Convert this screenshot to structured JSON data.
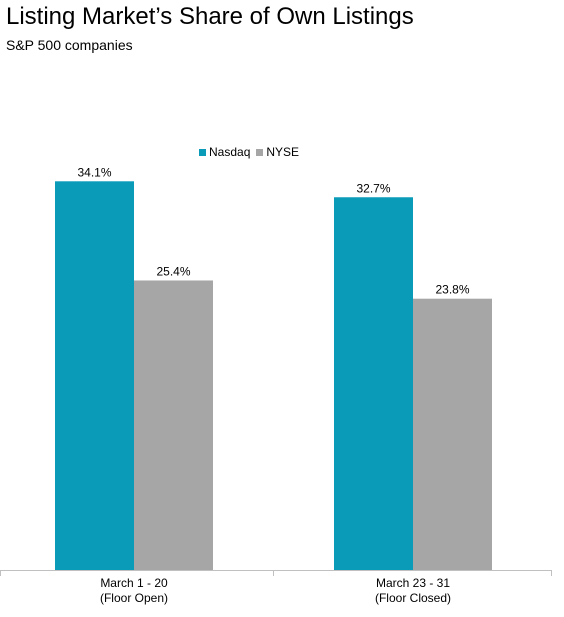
{
  "title": "Listing Market’s Share of Own Listings",
  "subtitle": "S&P 500 companies",
  "chart_data": {
    "type": "bar",
    "categories": [
      [
        "March 1 - 20",
        "(Floor Open)"
      ],
      [
        "March 23 - 31",
        "(Floor Closed)"
      ]
    ],
    "series": [
      {
        "name": "Nasdaq",
        "color": "#0a9bb8",
        "values": [
          34.1,
          32.7
        ],
        "labels": [
          "34.1%",
          "32.7%"
        ]
      },
      {
        "name": "NYSE",
        "color": "#a6a6a6",
        "values": [
          25.4,
          23.8
        ],
        "labels": [
          "25.4%",
          "23.8%"
        ]
      }
    ],
    "title": "Listing Market’s Share of Own Listings",
    "subtitle": "S&P 500 companies",
    "ylim": [
      0,
      38.6
    ],
    "grid": false,
    "legend_position": "top-center",
    "axis_color": "#c0c0c0"
  }
}
